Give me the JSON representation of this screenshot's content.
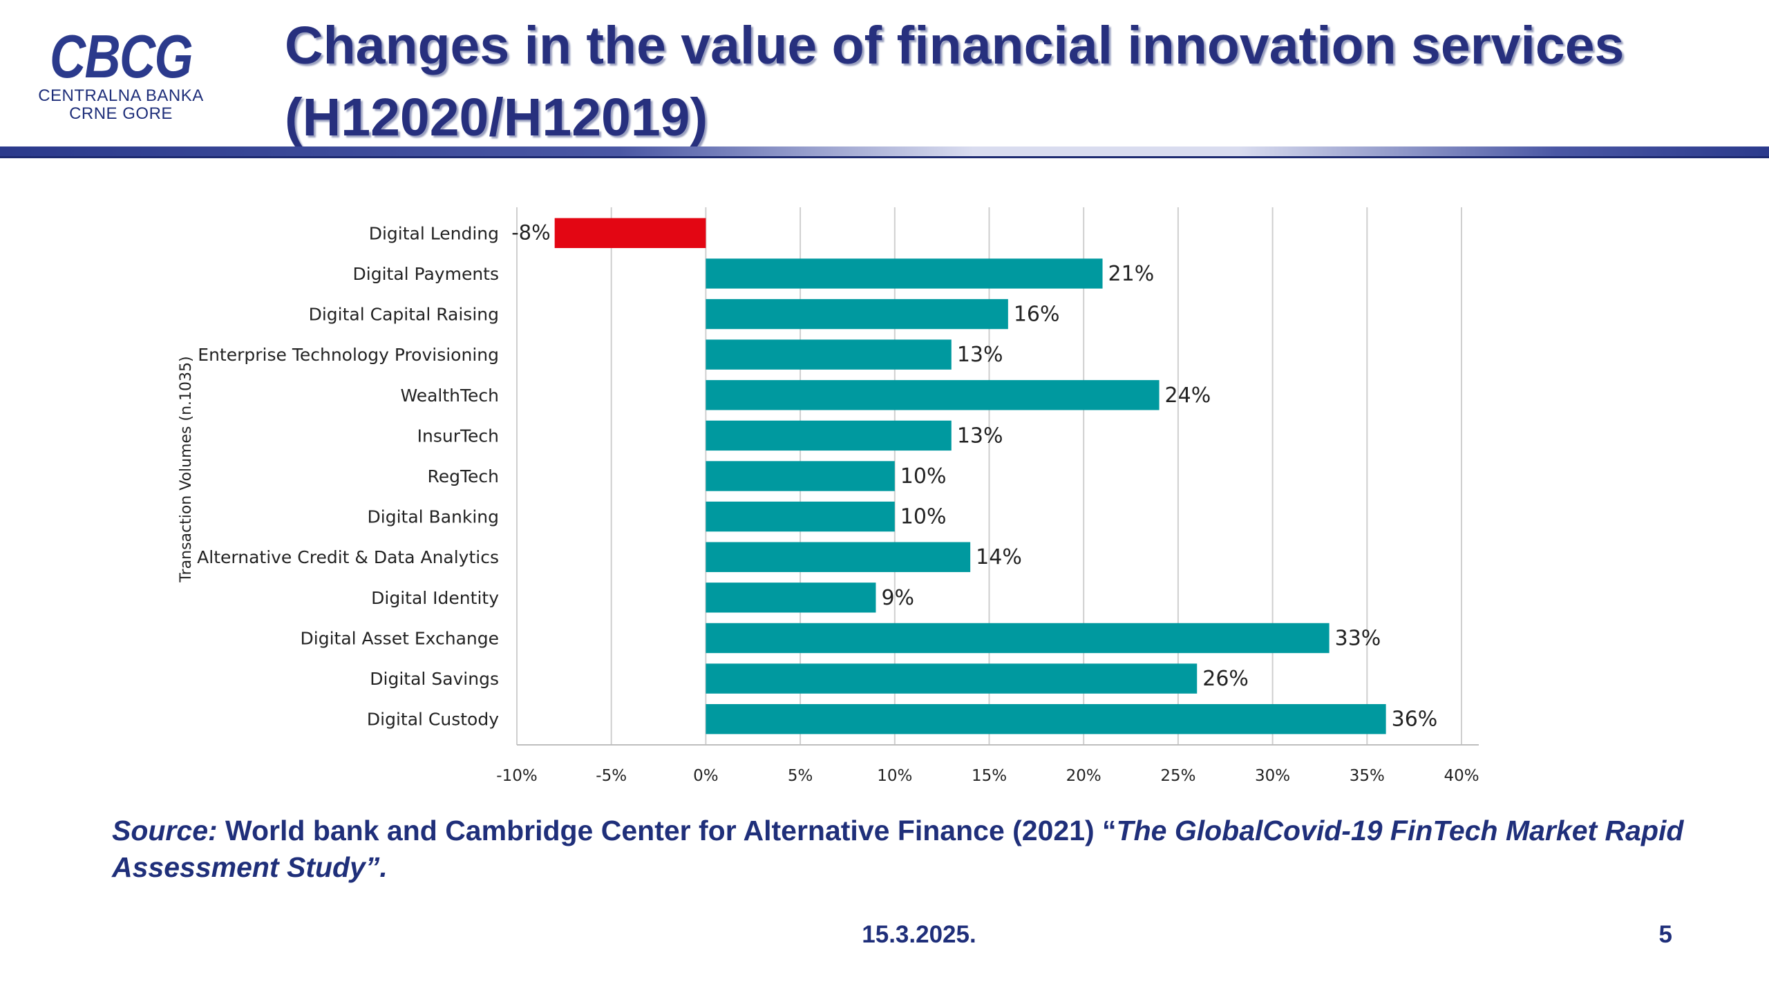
{
  "logo": {
    "mark": "CBCG",
    "line1": "CENTRALNA BANKA",
    "line2": "CRNE GORE"
  },
  "header": {
    "title": "Changes in the value of financial innovation services (H12020/H12019)"
  },
  "colors": {
    "positive_bar": "#00999f",
    "negative_bar": "#e30613",
    "brand": "#27307e"
  },
  "chart_data": {
    "type": "bar",
    "orientation": "horizontal",
    "categories": [
      "Digital Lending",
      "Digital Payments",
      "Digital Capital Raising",
      "Enterprise Technology Provisioning",
      "WealthTech",
      "InsurTech",
      "RegTech",
      "Digital Banking",
      "Alternative Credit & Data Analytics",
      "Digital Identity",
      "Digital Asset Exchange",
      "Digital Savings",
      "Digital Custody"
    ],
    "values": [
      -8,
      21,
      16,
      13,
      24,
      13,
      10,
      10,
      14,
      9,
      33,
      26,
      36
    ],
    "value_labels": [
      "-8%",
      "21%",
      "16%",
      "13%",
      "24%",
      "13%",
      "10%",
      "10%",
      "14%",
      "9%",
      "33%",
      "26%",
      "36%"
    ],
    "xlabel": "",
    "ylabel": "Transaction Volumes (n.1035)",
    "xlim": [
      -10,
      40
    ],
    "xticks": [
      -10,
      -5,
      0,
      5,
      10,
      15,
      20,
      25,
      30,
      35,
      40
    ],
    "xtick_labels": [
      "-10%",
      "-5%",
      "0%",
      "5%",
      "10%",
      "15%",
      "20%",
      "25%",
      "30%",
      "35%",
      "40%"
    ],
    "grid": "vertical"
  },
  "source": {
    "lead": "Source:",
    "text": " World bank and Cambridge Center for Alternative Finance (2021) “",
    "study": "The GlobalCovid-19 FinTech Market Rapid Assessment Study”."
  },
  "footer": {
    "date": "15.3.2025.",
    "page": "5"
  }
}
